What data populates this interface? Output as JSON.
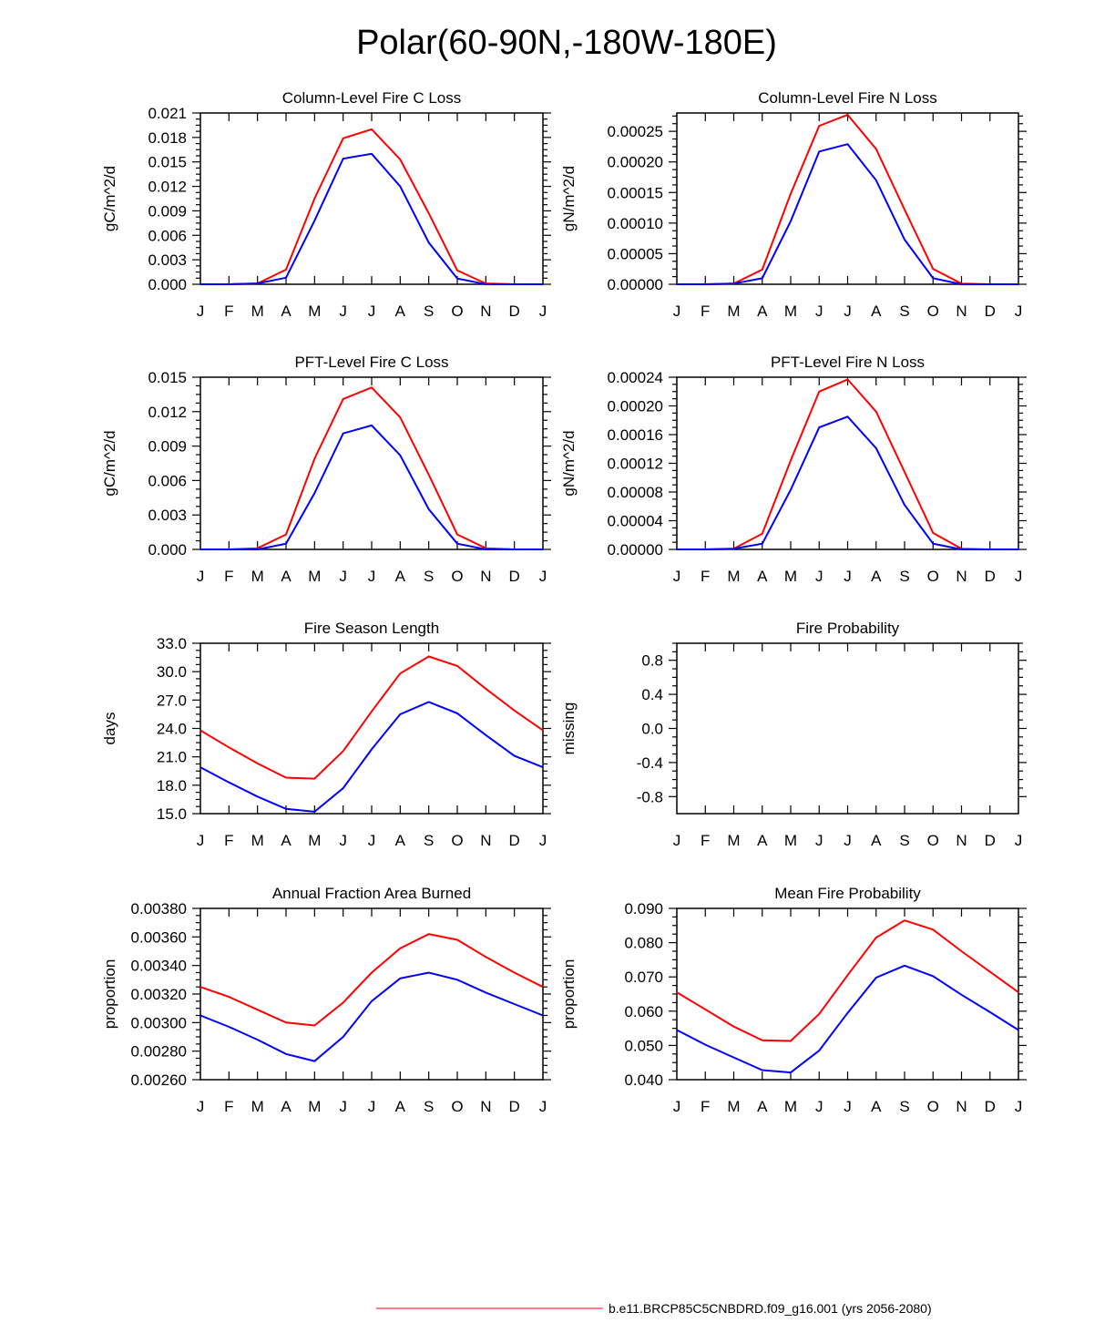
{
  "page": {
    "title": "Polar(60-90N,-180W-180E)",
    "legend_label": "b.e11.BRCP85C5CNBDRD.f09_g16.001 (yrs 2056-2080)",
    "legend_color": "#ff0000"
  },
  "colors": {
    "red": "#ff0000",
    "blue": "#0000ff"
  },
  "chart_data": [
    {
      "type": "line",
      "title": "Column-Level Fire C Loss",
      "ylabel": "gC/m^2/d",
      "x": [
        "J",
        "F",
        "M",
        "A",
        "M",
        "J",
        "J",
        "A",
        "S",
        "O",
        "N",
        "D",
        "J"
      ],
      "ylim": [
        0,
        0.021
      ],
      "yticks": [
        "0.000",
        "0.003",
        "0.006",
        "0.009",
        "0.012",
        "0.015",
        "0.018",
        "0.021"
      ],
      "series": [
        {
          "name": "red",
          "color": "#ff0000",
          "values": [
            0,
            0,
            0.0001,
            0.0018,
            0.0105,
            0.0179,
            0.019,
            0.0153,
            0.0087,
            0.0017,
            0.0001,
            0,
            0
          ]
        },
        {
          "name": "blue",
          "color": "#0000ff",
          "values": [
            0,
            0,
            0.0001,
            0.0008,
            0.0078,
            0.0154,
            0.016,
            0.012,
            0.0051,
            0.0007,
            0,
            0,
            0
          ]
        }
      ]
    },
    {
      "type": "line",
      "title": "Column-Level Fire N Loss",
      "ylabel": "gN/m^2/d",
      "x": [
        "J",
        "F",
        "M",
        "A",
        "M",
        "J",
        "J",
        "A",
        "S",
        "O",
        "N",
        "D",
        "J"
      ],
      "ylim": [
        0,
        0.00028
      ],
      "yticks": [
        "0.00000",
        "0.00005",
        "0.00010",
        "0.00015",
        "0.00020",
        "0.00025"
      ],
      "series": [
        {
          "name": "red",
          "color": "#ff0000",
          "values": [
            0,
            0,
            1e-06,
            2.4e-05,
            0.000148,
            0.000259,
            0.000277,
            0.000221,
            0.000122,
            2.5e-05,
            1e-06,
            0,
            0
          ]
        },
        {
          "name": "blue",
          "color": "#0000ff",
          "values": [
            0,
            0,
            1e-06,
            1e-05,
            0.000103,
            0.000217,
            0.000229,
            0.00017,
            7.3e-05,
            1e-05,
            0,
            0,
            0
          ]
        }
      ]
    },
    {
      "type": "line",
      "title": "PFT-Level Fire C Loss",
      "ylabel": "gC/m^2/d",
      "x": [
        "J",
        "F",
        "M",
        "A",
        "M",
        "J",
        "J",
        "A",
        "S",
        "O",
        "N",
        "D",
        "J"
      ],
      "ylim": [
        0,
        0.015
      ],
      "yticks": [
        "0.000",
        "0.003",
        "0.006",
        "0.009",
        "0.012",
        "0.015"
      ],
      "series": [
        {
          "name": "red",
          "color": "#ff0000",
          "values": [
            0,
            0,
            0.0001,
            0.0013,
            0.0079,
            0.0131,
            0.0141,
            0.0115,
            0.0065,
            0.0013,
            0.0001,
            0,
            0
          ]
        },
        {
          "name": "blue",
          "color": "#0000ff",
          "values": [
            0,
            0,
            0,
            0.0005,
            0.0049,
            0.0101,
            0.0108,
            0.0082,
            0.0035,
            0.0005,
            0,
            0,
            0
          ]
        }
      ]
    },
    {
      "type": "line",
      "title": "PFT-Level Fire N Loss",
      "ylabel": "gN/m^2/d",
      "x": [
        "J",
        "F",
        "M",
        "A",
        "M",
        "J",
        "J",
        "A",
        "S",
        "O",
        "N",
        "D",
        "J"
      ],
      "ylim": [
        0,
        0.00024
      ],
      "yticks": [
        "0.00000",
        "0.00004",
        "0.00008",
        "0.00012",
        "0.00016",
        "0.00020",
        "0.00024"
      ],
      "series": [
        {
          "name": "red",
          "color": "#ff0000",
          "values": [
            0,
            0,
            1e-06,
            2.2e-05,
            0.000124,
            0.00022,
            0.000237,
            0.000192,
            0.000108,
            2.3e-05,
            1e-06,
            0,
            0
          ]
        },
        {
          "name": "blue",
          "color": "#0000ff",
          "values": [
            0,
            0,
            1e-06,
            8e-06,
            8.3e-05,
            0.00017,
            0.000185,
            0.000141,
            6.2e-05,
            8e-06,
            0,
            0,
            0
          ]
        }
      ]
    },
    {
      "type": "line",
      "title": "Fire Season Length",
      "ylabel": "days",
      "x": [
        "J",
        "F",
        "M",
        "A",
        "M",
        "J",
        "J",
        "A",
        "S",
        "O",
        "N",
        "D",
        "J"
      ],
      "ylim": [
        15,
        33
      ],
      "yticks": [
        "15.0",
        "18.0",
        "21.0",
        "24.0",
        "27.0",
        "30.0",
        "33.0"
      ],
      "series": [
        {
          "name": "red",
          "color": "#ff0000",
          "values": [
            23.8,
            22.0,
            20.3,
            18.8,
            18.7,
            21.6,
            25.8,
            29.8,
            31.6,
            30.6,
            28.2,
            25.9,
            23.8
          ]
        },
        {
          "name": "blue",
          "color": "#0000ff",
          "values": [
            19.9,
            18.3,
            16.8,
            15.5,
            15.2,
            17.7,
            21.8,
            25.5,
            26.8,
            25.6,
            23.3,
            21.1,
            19.9
          ]
        }
      ]
    },
    {
      "type": "line",
      "title": "Fire Probability",
      "ylabel": "missing",
      "x": [
        "J",
        "F",
        "M",
        "A",
        "M",
        "J",
        "J",
        "A",
        "S",
        "O",
        "N",
        "D",
        "J"
      ],
      "ylim": [
        -1,
        1
      ],
      "yticks": [
        "-0.8",
        "-0.4",
        "0.0",
        "0.4",
        "0.8"
      ],
      "series": []
    },
    {
      "type": "line",
      "title": "Annual Fraction Area Burned",
      "ylabel": "proportion",
      "x": [
        "J",
        "F",
        "M",
        "A",
        "M",
        "J",
        "J",
        "A",
        "S",
        "O",
        "N",
        "D",
        "J"
      ],
      "ylim": [
        0.0026,
        0.0038
      ],
      "yticks": [
        "0.00260",
        "0.00280",
        "0.00300",
        "0.00320",
        "0.00340",
        "0.00360",
        "0.00380"
      ],
      "series": [
        {
          "name": "red",
          "color": "#ff0000",
          "values": [
            0.00325,
            0.00318,
            0.00309,
            0.003,
            0.00298,
            0.00314,
            0.00335,
            0.00352,
            0.00362,
            0.00358,
            0.00346,
            0.00335,
            0.00325
          ]
        },
        {
          "name": "blue",
          "color": "#0000ff",
          "values": [
            0.00305,
            0.00297,
            0.00288,
            0.00278,
            0.00273,
            0.0029,
            0.00315,
            0.00331,
            0.00335,
            0.0033,
            0.00321,
            0.00313,
            0.00305
          ]
        }
      ]
    },
    {
      "type": "line",
      "title": "Mean Fire Probability",
      "ylabel": "proportion",
      "x": [
        "J",
        "F",
        "M",
        "A",
        "M",
        "J",
        "J",
        "A",
        "S",
        "O",
        "N",
        "D",
        "J"
      ],
      "ylim": [
        0.04,
        0.09
      ],
      "yticks": [
        "0.040",
        "0.050",
        "0.060",
        "0.070",
        "0.080",
        "0.090"
      ],
      "series": [
        {
          "name": "red",
          "color": "#ff0000",
          "values": [
            0.0655,
            0.0605,
            0.0555,
            0.0515,
            0.0513,
            0.0592,
            0.0705,
            0.0815,
            0.0865,
            0.0838,
            0.0775,
            0.0715,
            0.0655
          ]
        },
        {
          "name": "blue",
          "color": "#0000ff",
          "values": [
            0.0545,
            0.0502,
            0.0465,
            0.0428,
            0.0421,
            0.0485,
            0.0595,
            0.0698,
            0.0733,
            0.0702,
            0.0648,
            0.0597,
            0.0545
          ]
        }
      ]
    }
  ]
}
